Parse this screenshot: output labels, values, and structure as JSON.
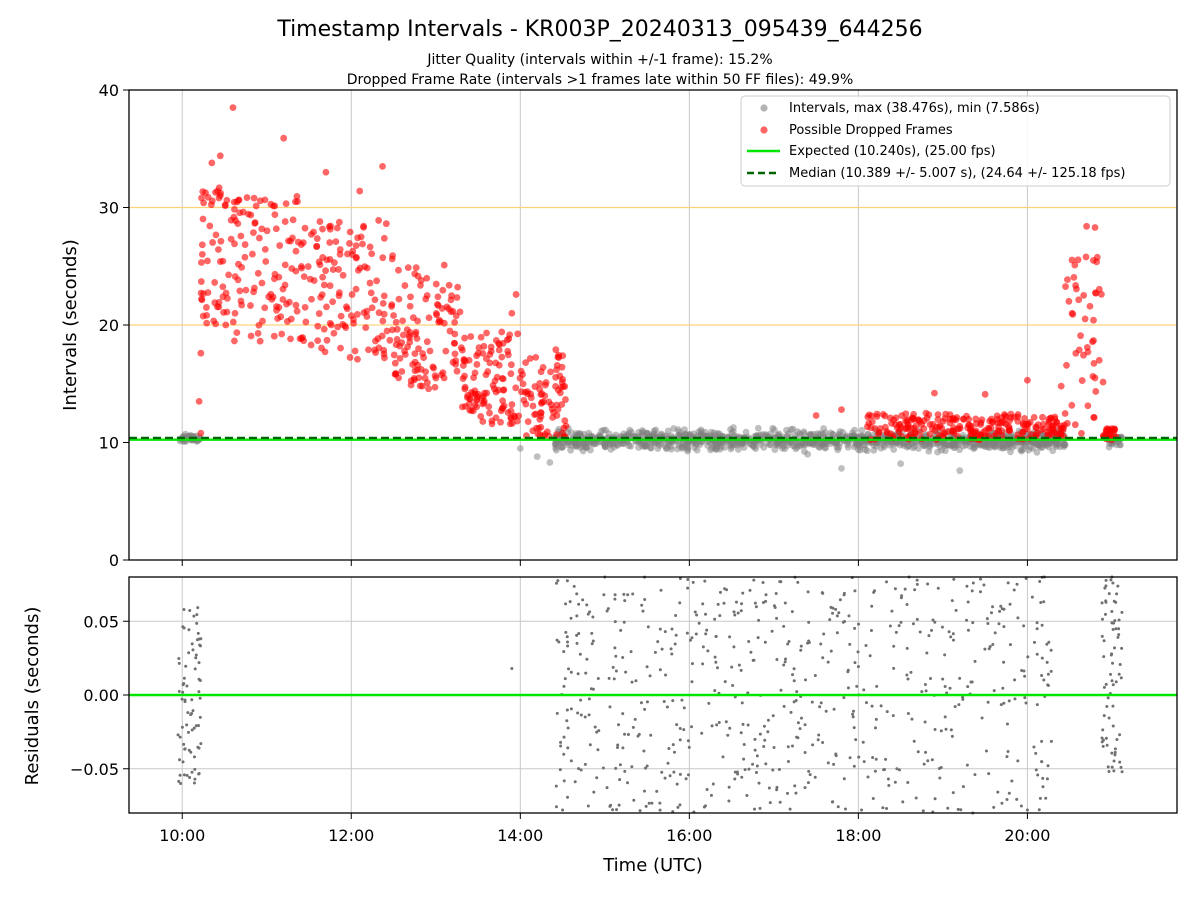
{
  "figure": {
    "title": "Timestamp Intervals - KR003P_20240313_095439_644256",
    "subtitle_1": "Jitter Quality (intervals within +/-1 frame): 15.2%",
    "subtitle_2": "Dropped Frame Rate (intervals >1 frames late within 50 FF files): 49.9%"
  },
  "chart_data": [
    {
      "type": "scatter",
      "xlabel": "",
      "ylabel": "Intervals (seconds)",
      "xlim": [
        9.37,
        21.77
      ],
      "ylim": [
        0,
        40
      ],
      "yticks": [
        0,
        10,
        20,
        30,
        40
      ],
      "ytick_labels": [
        "0",
        "10",
        "20",
        "30",
        "40"
      ],
      "grid": true,
      "legend_location": "upper right",
      "hlines": [
        {
          "y": 20,
          "color": "#ffd27a",
          "style": "solid"
        },
        {
          "y": 30,
          "color": "#ffd27a",
          "style": "solid"
        }
      ],
      "series": [
        {
          "name": "Intervals, max (38.476s), min (7.586s)",
          "kind": "scatter",
          "color": "#808080",
          "opacity": 0.5,
          "description_points": [
            [
              9.98,
              10.3
            ],
            [
              10.05,
              10.4
            ],
            [
              10.12,
              10.2
            ],
            [
              10.2,
              10.5
            ],
            [
              14.5,
              10.0
            ],
            [
              14.5,
              9.6
            ],
            [
              14.0,
              9.5
            ],
            [
              14.2,
              8.8
            ],
            [
              14.35,
              8.3
            ],
            [
              15.0,
              9.8
            ],
            [
              15.5,
              10.3
            ],
            [
              16.0,
              10.2
            ],
            [
              16.5,
              9.9
            ],
            [
              17.0,
              10.4
            ],
            [
              17.4,
              9.0
            ],
            [
              17.8,
              7.8
            ],
            [
              18.0,
              9.4
            ],
            [
              18.5,
              8.2
            ],
            [
              19.2,
              7.6
            ],
            [
              19.8,
              9.2
            ],
            [
              20.3,
              9.3
            ],
            [
              21.0,
              10.1
            ],
            [
              21.1,
              9.8
            ]
          ],
          "bands": [
            {
              "x_from": 9.95,
              "x_to": 10.22,
              "y_center": 10.35,
              "y_spread": 0.35,
              "count": 40
            },
            {
              "x_from": 14.4,
              "x_to": 20.45,
              "y_center": 10.2,
              "y_spread": 0.9,
              "count": 1100
            },
            {
              "x_from": 20.92,
              "x_to": 21.12,
              "y_center": 10.2,
              "y_spread": 0.5,
              "count": 40
            }
          ]
        },
        {
          "name": "Possible Dropped Frames",
          "kind": "scatter",
          "color": "#ff0000",
          "opacity": 0.6,
          "description_points": [
            [
              10.6,
              38.5
            ],
            [
              11.2,
              35.9
            ],
            [
              12.37,
              33.5
            ],
            [
              10.45,
              34.4
            ],
            [
              10.35,
              33.8
            ],
            [
              11.7,
              33.0
            ],
            [
              12.1,
              31.4
            ],
            [
              13.1,
              25.1
            ],
            [
              13.95,
              22.6
            ],
            [
              13.9,
              21.0
            ],
            [
              14.42,
              17.9
            ],
            [
              14.5,
              10.8
            ],
            [
              10.22,
              10.8
            ],
            [
              10.2,
              13.5
            ],
            [
              10.22,
              17.6
            ],
            [
              20.7,
              28.4
            ],
            [
              20.8,
              28.3
            ],
            [
              20.78,
              25.5
            ],
            [
              20.85,
              17.0
            ],
            [
              20.9,
              10.6
            ],
            [
              17.5,
              12.3
            ],
            [
              17.8,
              12.8
            ],
            [
              18.9,
              14.2
            ],
            [
              19.5,
              14.1
            ],
            [
              20.0,
              15.3
            ],
            [
              20.4,
              14.8
            ]
          ],
          "bands": [
            {
              "x_from": 10.22,
              "x_to": 10.5,
              "y_from": 20.0,
              "y_to": 32.0,
              "count": 45
            },
            {
              "x_from": 10.5,
              "x_to": 11.5,
              "y_from": 18.5,
              "y_to": 31.0,
              "count": 120
            },
            {
              "x_from": 11.5,
              "x_to": 12.5,
              "y_from": 17.0,
              "y_to": 29.0,
              "count": 120
            },
            {
              "x_from": 12.5,
              "x_to": 13.3,
              "y_from": 14.5,
              "y_to": 25.0,
              "count": 110
            },
            {
              "x_from": 13.3,
              "x_to": 14.0,
              "y_from": 11.5,
              "y_to": 19.5,
              "count": 110
            },
            {
              "x_from": 14.0,
              "x_to": 14.55,
              "y_from": 10.3,
              "y_to": 17.5,
              "count": 80
            },
            {
              "x_from": 18.1,
              "x_to": 20.45,
              "y_from": 10.2,
              "y_to": 12.5,
              "count": 240
            },
            {
              "x_from": 20.45,
              "x_to": 20.9,
              "y_from": 10.5,
              "y_to": 26.0,
              "count": 45
            },
            {
              "x_from": 20.9,
              "x_to": 21.05,
              "y_from": 10.2,
              "y_to": 11.2,
              "count": 25
            }
          ]
        },
        {
          "name": "Expected (10.240s), (25.00 fps)",
          "kind": "hline",
          "y": 10.24,
          "color": "#00e600",
          "style": "solid"
        },
        {
          "name": "Median (10.389 +/- 5.007 s), (24.64 +/- 125.18 fps)",
          "kind": "hline",
          "y": 10.389,
          "color": "#006400",
          "style": "dashed"
        }
      ]
    },
    {
      "type": "scatter",
      "xlabel": "Time (UTC)",
      "ylabel": "Residuals (seconds)",
      "xlim": [
        9.37,
        21.77
      ],
      "ylim": [
        -0.08,
        0.08
      ],
      "yticks": [
        -0.05,
        0.0,
        0.05
      ],
      "ytick_labels": [
        "−0.05",
        "0.00",
        "0.05"
      ],
      "xticks": [
        10,
        12,
        14,
        16,
        18,
        20
      ],
      "xtick_labels": [
        "10:00",
        "12:00",
        "14:00",
        "16:00",
        "18:00",
        "20:00"
      ],
      "grid": true,
      "series": [
        {
          "kind": "hline",
          "y": 0.0,
          "color": "#00e600",
          "style": "solid"
        },
        {
          "kind": "scatter",
          "color": "#707070",
          "description_points": [
            [
              10.02,
              0.058
            ],
            [
              9.95,
              -0.027
            ],
            [
              9.98,
              -0.06
            ],
            [
              10.15,
              -0.057
            ],
            [
              10.2,
              0.038
            ],
            [
              10.22,
              -0.033
            ],
            [
              13.9,
              0.018
            ],
            [
              14.5,
              -0.078
            ],
            [
              14.6,
              0.052
            ],
            [
              15.0,
              0.08
            ],
            [
              18.6,
              0.08
            ],
            [
              20.2,
              0.08
            ],
            [
              20.0,
              -0.078
            ],
            [
              21.0,
              0.08
            ],
            [
              21.12,
              -0.052
            ]
          ],
          "bands": [
            {
              "x_from": 9.95,
              "x_to": 10.22,
              "y_from": -0.06,
              "y_to": 0.06,
              "count": 70
            },
            {
              "x_from": 14.42,
              "x_to": 20.3,
              "y_from": -0.08,
              "y_to": 0.08,
              "count": 650
            },
            {
              "x_from": 20.88,
              "x_to": 21.12,
              "y_from": -0.052,
              "y_to": 0.08,
              "count": 70
            }
          ]
        }
      ]
    }
  ]
}
